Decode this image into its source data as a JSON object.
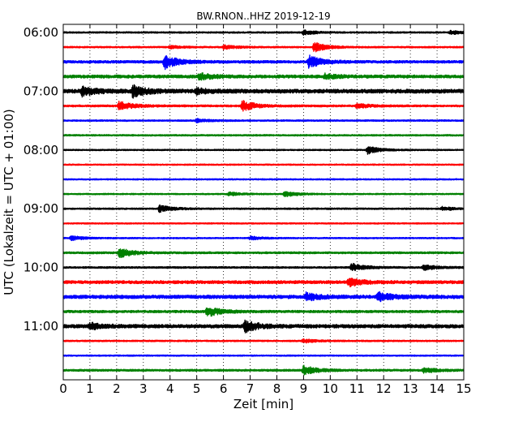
{
  "chart_data": {
    "type": "line",
    "title": "BW.RNON..HHZ 2019-12-19",
    "xlabel": "Zeit  [min]",
    "ylabel": "UTC (Lokalzeit = UTC + 01:00)",
    "xlim": [
      0,
      15
    ],
    "x_ticks": [
      "0",
      "1",
      "2",
      "3",
      "4",
      "5",
      "6",
      "7",
      "8",
      "9",
      "10",
      "11",
      "12",
      "13",
      "14",
      "15"
    ],
    "y_ticks": [
      "06:00",
      "07:00",
      "08:00",
      "09:00",
      "10:00",
      "11:00"
    ],
    "grid": {
      "x": true,
      "style": "dotted"
    },
    "colors": [
      "#000000",
      "#ff0000",
      "#0000ff",
      "#008000"
    ],
    "series": [
      {
        "start": "06:00",
        "color": "#000000",
        "noise": 0.35,
        "events": [
          [
            9.0,
            1.0
          ],
          [
            14.5,
            0.8
          ]
        ]
      },
      {
        "start": "06:15",
        "color": "#ff0000",
        "noise": 0.35,
        "events": [
          [
            6.0,
            1.0
          ],
          [
            9.4,
            2.2
          ],
          [
            4.0,
            0.6
          ]
        ]
      },
      {
        "start": "06:30",
        "color": "#0000ff",
        "noise": 0.6,
        "events": [
          [
            3.8,
            3.2
          ],
          [
            9.2,
            2.8
          ]
        ]
      },
      {
        "start": "06:45",
        "color": "#008000",
        "noise": 0.7,
        "events": [
          [
            5.1,
            1.5
          ],
          [
            9.8,
            1.0
          ]
        ]
      },
      {
        "start": "07:00",
        "color": "#000000",
        "noise": 0.9,
        "events": [
          [
            0.7,
            2.0
          ],
          [
            2.6,
            2.6
          ],
          [
            5.0,
            1.0
          ]
        ]
      },
      {
        "start": "07:15",
        "color": "#ff0000",
        "noise": 0.45,
        "events": [
          [
            2.1,
            2.2
          ],
          [
            6.7,
            2.5
          ],
          [
            11.0,
            1.0
          ]
        ]
      },
      {
        "start": "07:30",
        "color": "#0000ff",
        "noise": 0.35,
        "events": [
          [
            5.0,
            0.8
          ]
        ]
      },
      {
        "start": "07:45",
        "color": "#008000",
        "noise": 0.35,
        "events": []
      },
      {
        "start": "08:00",
        "color": "#000000",
        "noise": 0.3,
        "events": [
          [
            11.4,
            1.8
          ]
        ]
      },
      {
        "start": "08:15",
        "color": "#ff0000",
        "noise": 0.3,
        "events": []
      },
      {
        "start": "08:30",
        "color": "#0000ff",
        "noise": 0.3,
        "events": []
      },
      {
        "start": "08:45",
        "color": "#008000",
        "noise": 0.3,
        "events": [
          [
            6.2,
            0.8
          ],
          [
            8.3,
            1.2
          ]
        ]
      },
      {
        "start": "09:00",
        "color": "#000000",
        "noise": 0.35,
        "events": [
          [
            3.6,
            1.6
          ],
          [
            14.2,
            0.8
          ]
        ]
      },
      {
        "start": "09:15",
        "color": "#ff0000",
        "noise": 0.3,
        "events": []
      },
      {
        "start": "09:30",
        "color": "#0000ff",
        "noise": 0.3,
        "events": [
          [
            0.3,
            1.0
          ],
          [
            7.0,
            0.8
          ]
        ]
      },
      {
        "start": "09:45",
        "color": "#008000",
        "noise": 0.45,
        "events": [
          [
            2.1,
            2.2
          ]
        ]
      },
      {
        "start": "10:00",
        "color": "#000000",
        "noise": 0.4,
        "events": [
          [
            10.8,
            1.8
          ],
          [
            13.5,
            1.2
          ]
        ]
      },
      {
        "start": "10:15",
        "color": "#ff0000",
        "noise": 0.7,
        "events": [
          [
            10.7,
            1.8
          ]
        ]
      },
      {
        "start": "10:30",
        "color": "#0000ff",
        "noise": 0.8,
        "events": [
          [
            9.1,
            1.8
          ],
          [
            11.8,
            2.0
          ]
        ]
      },
      {
        "start": "10:45",
        "color": "#008000",
        "noise": 0.55,
        "events": [
          [
            5.4,
            2.3
          ]
        ]
      },
      {
        "start": "11:00",
        "color": "#000000",
        "noise": 0.8,
        "events": [
          [
            6.8,
            2.6
          ],
          [
            1.0,
            1.4
          ]
        ]
      },
      {
        "start": "11:15",
        "color": "#ff0000",
        "noise": 0.35,
        "events": [
          [
            9.0,
            0.8
          ]
        ]
      },
      {
        "start": "11:30",
        "color": "#0000ff",
        "noise": 0.3,
        "events": []
      },
      {
        "start": "11:45",
        "color": "#008000",
        "noise": 0.45,
        "events": [
          [
            9.0,
            2.2
          ],
          [
            13.5,
            1.2
          ]
        ]
      }
    ]
  }
}
